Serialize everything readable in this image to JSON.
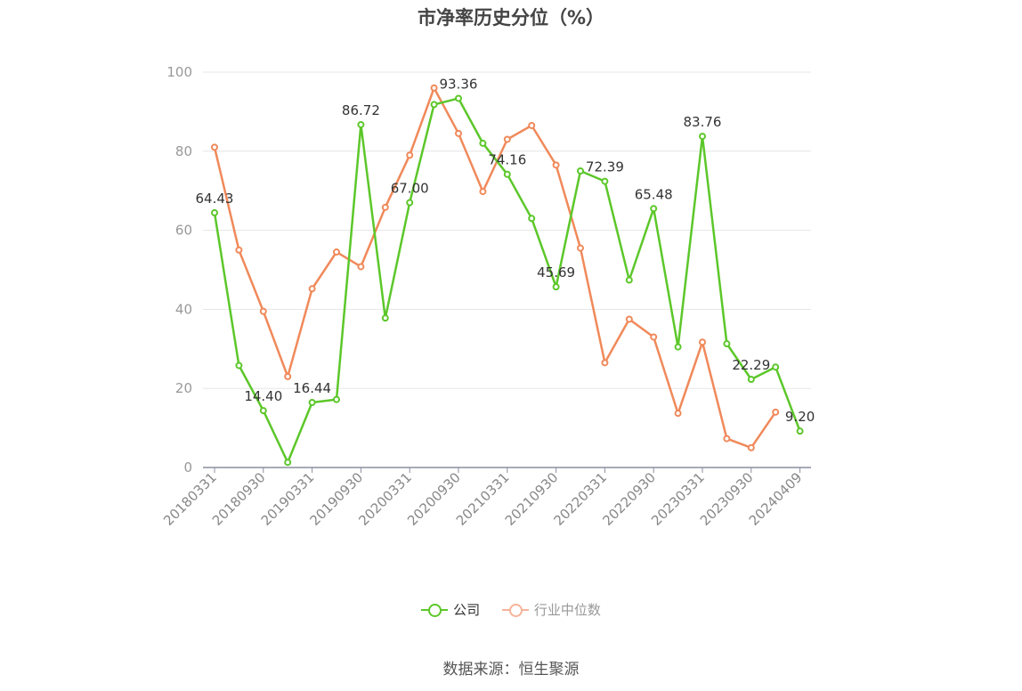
{
  "title": "市净率历史分位（%）",
  "source": "数据来源：恒生聚源",
  "colors": {
    "company": "#5cc72a",
    "industry": "#f0895a",
    "grid": "#e6e6e6",
    "axis": "#8a8f9e"
  },
  "legend": [
    {
      "name": "公司",
      "color": "#5cc72a"
    },
    {
      "name": "行业中位数",
      "color": "#f5b49a"
    }
  ],
  "chart_data": {
    "type": "line",
    "ylim": [
      0,
      100
    ],
    "yticks": [
      0,
      20,
      40,
      60,
      80,
      100
    ],
    "xtick_labels": [
      "20180331",
      "20180930",
      "20190331",
      "20190930",
      "20200331",
      "20200930",
      "20210331",
      "20210930",
      "20220331",
      "20220930",
      "20230331",
      "20230930",
      "20240409"
    ],
    "grid": true,
    "legend_position": "bottom",
    "series": [
      {
        "name": "公司",
        "values": [
          64.43,
          25.8,
          14.4,
          1.3,
          16.44,
          17.2,
          86.72,
          37.8,
          67.0,
          91.8,
          93.36,
          82.0,
          74.16,
          63.0,
          45.69,
          75.0,
          72.39,
          47.4,
          65.48,
          30.5,
          83.76,
          31.3,
          22.29,
          25.4,
          9.2
        ],
        "labels": {
          "0": "64.43",
          "2": "14.40",
          "4": "16.44",
          "6": "86.72",
          "8": "67.00",
          "10": "93.36",
          "12": "74.16",
          "14": "45.69",
          "16": "72.39",
          "18": "65.48",
          "20": "83.76",
          "22": "22.29",
          "24": "9.20"
        }
      },
      {
        "name": "行业中位数",
        "values": [
          81.0,
          55.0,
          39.5,
          23.0,
          45.2,
          54.5,
          50.8,
          65.8,
          79.0,
          96.0,
          84.5,
          69.8,
          83.0,
          86.5,
          76.5,
          55.5,
          26.5,
          37.5,
          33.0,
          13.7,
          31.7,
          7.3,
          5.0,
          14.0,
          null
        ]
      }
    ]
  }
}
